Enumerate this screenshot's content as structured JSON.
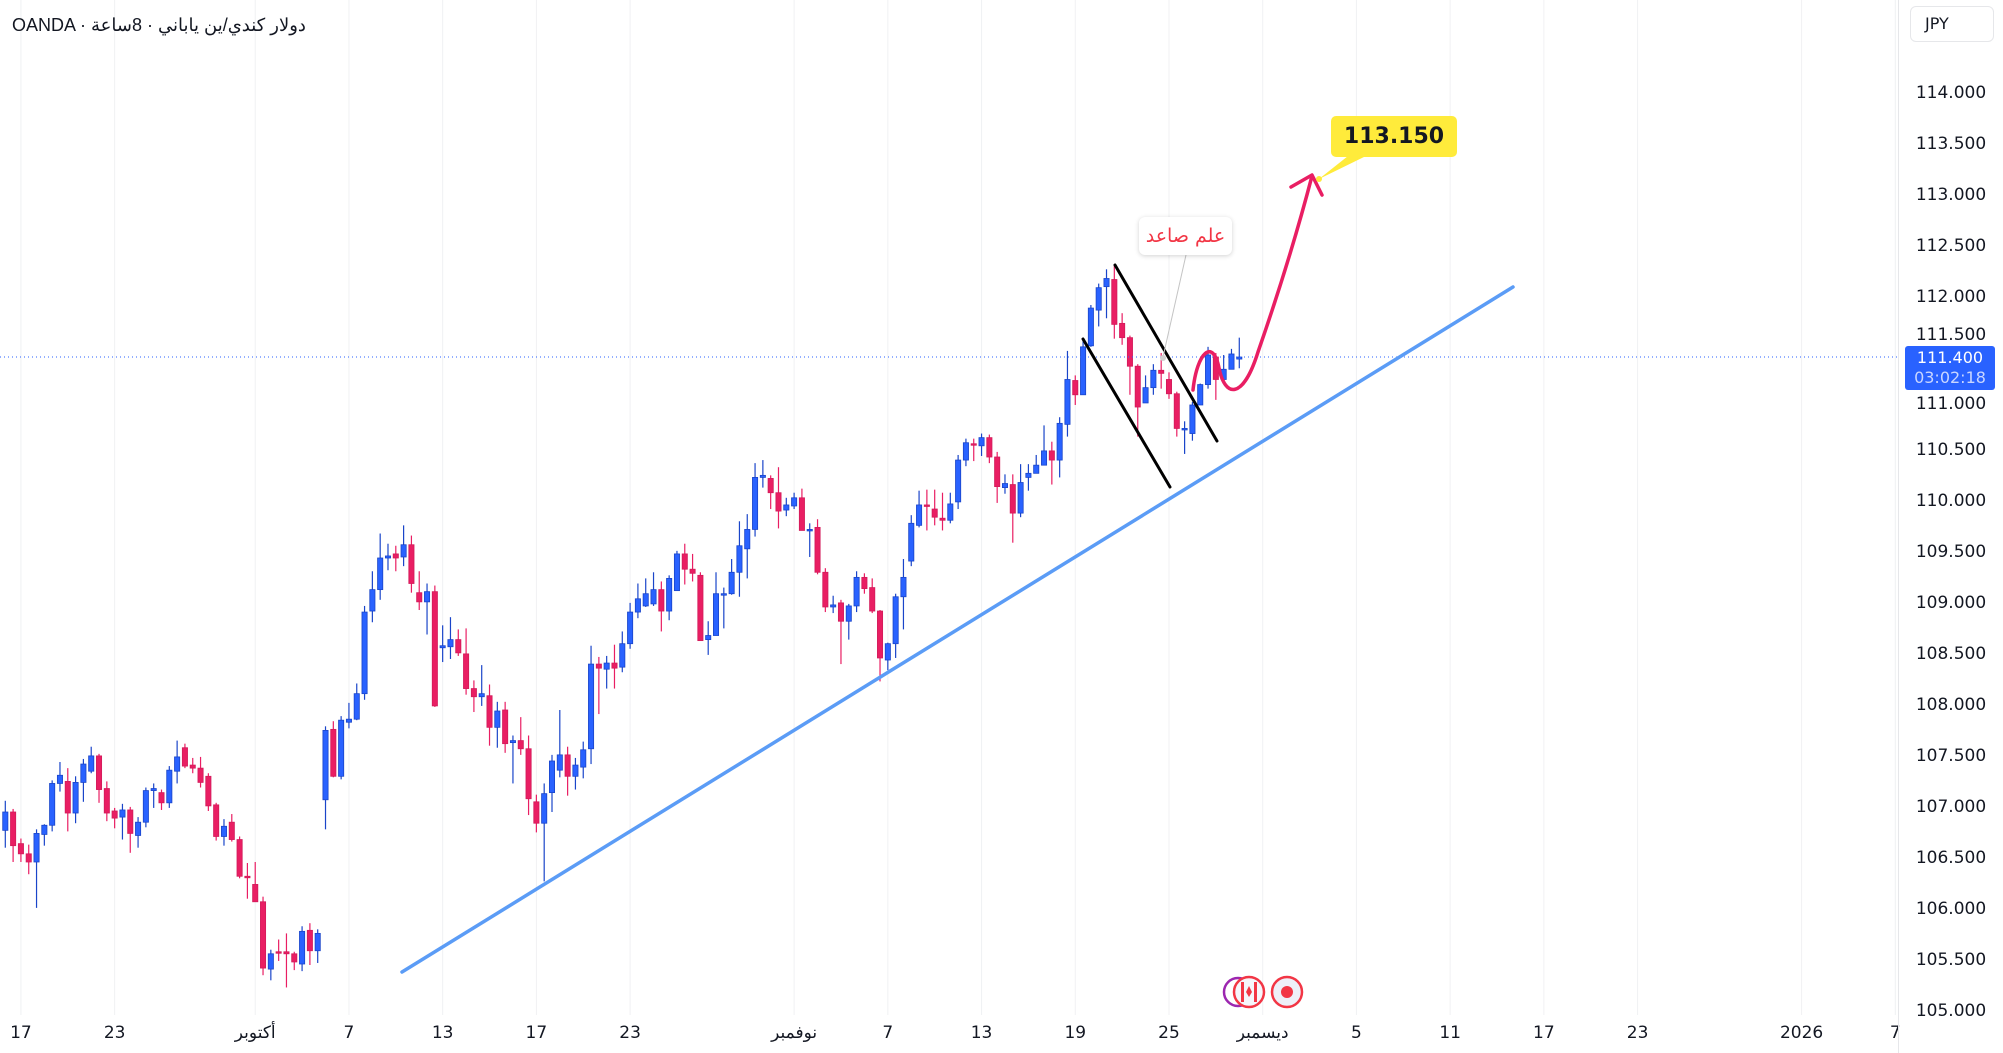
{
  "header": {
    "title": "OANDA · دولار كندي/ين ياباني · 8ساعة",
    "currency_button": "JPY"
  },
  "price_tag": {
    "price": "111.400",
    "countdown": "03:02:18"
  },
  "annotations": {
    "flag_label": "علم صاعد",
    "target_label": "113.150"
  },
  "colors": {
    "up": "#2962ff",
    "up_border": "#1a45c9",
    "down": "#e91e63",
    "down_border": "#d21b5a",
    "trendline": "#5b9cf6",
    "arrow": "#e91e63",
    "target_bg": "#ffeb3b",
    "grid": "#f0f1f3"
  },
  "events": [
    {
      "icon": "canada-flag-icon"
    },
    {
      "icon": "japan-flag-icon"
    }
  ],
  "chart_data": {
    "type": "candlestick",
    "title": "OANDA · دولار كندي/ين ياباني · 8ساعة",
    "ylabel": "JPY",
    "ylim": [
      104.95,
      114.9
    ],
    "last_price": 111.4,
    "y_ticks": [
      "114.000",
      "113.500",
      "113.000",
      "112.500",
      "112.000",
      "111.500",
      "111.000",
      "110.500",
      "110.000",
      "109.500",
      "109.000",
      "108.500",
      "108.000",
      "107.500",
      "107.000",
      "106.500",
      "106.000",
      "105.500",
      "105.000"
    ],
    "x_ticks": [
      {
        "label": "17",
        "candle": 2
      },
      {
        "label": "23",
        "candle": 14
      },
      {
        "label": "أكتوبر",
        "candle": 32
      },
      {
        "label": "7",
        "candle": 44
      },
      {
        "label": "13",
        "candle": 56
      },
      {
        "label": "17",
        "candle": 68
      },
      {
        "label": "23",
        "candle": 80
      },
      {
        "label": "نوفمبر",
        "candle": 101
      },
      {
        "label": "7",
        "candle": 113
      },
      {
        "label": "13",
        "candle": 125
      },
      {
        "label": "19",
        "candle": 137
      },
      {
        "label": "25",
        "candle": 149
      },
      {
        "label": "ديسمبر",
        "candle": 161
      },
      {
        "label": "5",
        "candle": 173
      },
      {
        "label": "11",
        "candle": 185
      },
      {
        "label": "17",
        "candle": 197
      },
      {
        "label": "23",
        "candle": 209
      },
      {
        "label": "2026",
        "candle": 230
      },
      {
        "label": "7",
        "candle": 242
      }
    ],
    "ohlc_fields": [
      "open",
      "high",
      "low",
      "close"
    ],
    "candles": [
      [
        106.76,
        107.05,
        106.59,
        106.94
      ],
      [
        106.94,
        106.97,
        106.45,
        106.61
      ],
      [
        106.63,
        106.68,
        106.45,
        106.53
      ],
      [
        106.53,
        106.62,
        106.33,
        106.45
      ],
      [
        106.45,
        106.77,
        106.0,
        106.73
      ],
      [
        106.72,
        106.82,
        106.61,
        106.81
      ],
      [
        106.81,
        107.25,
        106.75,
        107.22
      ],
      [
        107.22,
        107.43,
        107.14,
        107.3
      ],
      [
        107.24,
        107.37,
        106.75,
        106.93
      ],
      [
        106.93,
        107.29,
        106.83,
        107.23
      ],
      [
        107.23,
        107.46,
        107.04,
        107.41
      ],
      [
        107.34,
        107.58,
        107.32,
        107.49
      ],
      [
        107.49,
        107.51,
        107.03,
        107.16
      ],
      [
        107.17,
        107.24,
        106.85,
        106.93
      ],
      [
        106.95,
        106.98,
        106.78,
        106.88
      ],
      [
        106.89,
        107.02,
        106.67,
        106.96
      ],
      [
        106.96,
        106.99,
        106.54,
        106.73
      ],
      [
        106.71,
        106.89,
        106.59,
        106.84
      ],
      [
        106.84,
        107.18,
        106.79,
        107.15
      ],
      [
        107.15,
        107.22,
        106.98,
        107.17
      ],
      [
        107.13,
        107.16,
        106.96,
        107.03
      ],
      [
        107.03,
        107.39,
        106.98,
        107.35
      ],
      [
        107.34,
        107.64,
        107.22,
        107.48
      ],
      [
        107.57,
        107.61,
        107.37,
        107.39
      ],
      [
        107.4,
        107.47,
        107.32,
        107.37
      ],
      [
        107.37,
        107.48,
        107.18,
        107.23
      ],
      [
        107.29,
        107.32,
        106.95,
        107.0
      ],
      [
        107.01,
        107.03,
        106.66,
        106.7
      ],
      [
        106.7,
        106.87,
        106.61,
        106.8
      ],
      [
        106.84,
        106.92,
        106.65,
        106.67
      ],
      [
        106.67,
        106.7,
        106.29,
        106.31
      ],
      [
        106.31,
        106.44,
        106.09,
        106.3
      ],
      [
        106.23,
        106.45,
        106.06,
        106.06
      ],
      [
        106.06,
        106.11,
        105.34,
        105.41
      ],
      [
        105.4,
        105.59,
        105.29,
        105.55
      ],
      [
        105.57,
        105.69,
        105.48,
        105.56
      ],
      [
        105.57,
        105.75,
        105.22,
        105.55
      ],
      [
        105.55,
        105.57,
        105.39,
        105.47
      ],
      [
        105.45,
        105.82,
        105.38,
        105.77
      ],
      [
        105.78,
        105.85,
        105.44,
        105.58
      ],
      [
        105.58,
        105.79,
        105.46,
        105.75
      ],
      [
        107.06,
        107.78,
        106.77,
        107.74
      ],
      [
        107.75,
        107.83,
        107.28,
        107.29
      ],
      [
        107.29,
        107.88,
        107.26,
        107.84
      ],
      [
        107.82,
        108.01,
        107.76,
        107.85
      ],
      [
        107.85,
        108.2,
        107.84,
        108.1
      ],
      [
        108.1,
        108.96,
        108.04,
        108.9
      ],
      [
        108.91,
        109.3,
        108.8,
        109.12
      ],
      [
        109.12,
        109.67,
        109.02,
        109.43
      ],
      [
        109.43,
        109.57,
        109.31,
        109.45
      ],
      [
        109.47,
        109.55,
        109.3,
        109.43
      ],
      [
        109.44,
        109.75,
        109.35,
        109.56
      ],
      [
        109.56,
        109.65,
        109.09,
        109.18
      ],
      [
        109.09,
        109.3,
        108.92,
        109.0
      ],
      [
        109.0,
        109.18,
        108.68,
        109.1
      ],
      [
        109.1,
        109.16,
        107.97,
        107.98
      ],
      [
        108.55,
        108.77,
        108.41,
        108.57
      ],
      [
        108.56,
        108.85,
        108.44,
        108.63
      ],
      [
        108.63,
        108.73,
        108.47,
        108.5
      ],
      [
        108.49,
        108.74,
        108.09,
        108.15
      ],
      [
        108.15,
        108.23,
        107.92,
        108.07
      ],
      [
        108.07,
        108.38,
        107.98,
        108.1
      ],
      [
        108.08,
        108.19,
        107.59,
        107.77
      ],
      [
        107.77,
        108.02,
        107.57,
        107.93
      ],
      [
        107.94,
        108.02,
        107.52,
        107.61
      ],
      [
        107.62,
        107.69,
        107.22,
        107.64
      ],
      [
        107.64,
        107.87,
        107.5,
        107.56
      ],
      [
        107.56,
        107.69,
        106.91,
        107.07
      ],
      [
        107.04,
        107.11,
        106.74,
        106.83
      ],
      [
        106.83,
        107.22,
        106.26,
        107.12
      ],
      [
        107.13,
        107.5,
        106.94,
        107.44
      ],
      [
        107.35,
        107.94,
        107.28,
        107.5
      ],
      [
        107.5,
        107.58,
        107.1,
        107.29
      ],
      [
        107.29,
        107.47,
        107.16,
        107.4
      ],
      [
        107.38,
        107.63,
        107.27,
        107.55
      ],
      [
        107.56,
        108.57,
        107.41,
        108.39
      ],
      [
        108.39,
        108.46,
        107.9,
        108.35
      ],
      [
        108.34,
        108.47,
        108.15,
        108.4
      ],
      [
        108.4,
        108.58,
        108.15,
        108.35
      ],
      [
        108.36,
        108.71,
        108.31,
        108.59
      ],
      [
        108.59,
        108.99,
        108.54,
        108.9
      ],
      [
        108.9,
        109.18,
        108.84,
        109.03
      ],
      [
        108.96,
        109.23,
        108.95,
        109.08
      ],
      [
        108.98,
        109.29,
        108.96,
        109.12
      ],
      [
        109.12,
        109.2,
        108.71,
        108.91
      ],
      [
        108.91,
        109.26,
        108.82,
        109.23
      ],
      [
        109.11,
        109.5,
        109.11,
        109.47
      ],
      [
        109.47,
        109.57,
        109.17,
        109.32
      ],
      [
        109.32,
        109.47,
        109.2,
        109.28
      ],
      [
        109.26,
        109.29,
        108.62,
        108.62
      ],
      [
        108.63,
        108.81,
        108.48,
        108.67
      ],
      [
        108.67,
        109.29,
        108.67,
        109.08
      ],
      [
        109.07,
        109.14,
        108.74,
        109.08
      ],
      [
        109.08,
        109.42,
        109.07,
        109.29
      ],
      [
        109.29,
        109.79,
        109.05,
        109.55
      ],
      [
        109.52,
        109.86,
        109.23,
        109.71
      ],
      [
        109.71,
        110.36,
        109.64,
        110.22
      ],
      [
        110.22,
        110.39,
        110.12,
        110.24
      ],
      [
        110.21,
        110.24,
        109.91,
        110.07
      ],
      [
        110.07,
        110.32,
        109.72,
        109.89
      ],
      [
        109.9,
        110.02,
        109.84,
        109.95
      ],
      [
        109.94,
        110.07,
        109.91,
        110.02
      ],
      [
        110.02,
        110.11,
        109.7,
        109.7
      ],
      [
        109.7,
        109.77,
        109.44,
        109.71
      ],
      [
        109.73,
        109.81,
        109.27,
        109.29
      ],
      [
        109.29,
        109.33,
        108.9,
        108.95
      ],
      [
        108.95,
        109.06,
        108.89,
        108.97
      ],
      [
        108.99,
        109.02,
        108.39,
        108.81
      ],
      [
        108.81,
        108.98,
        108.63,
        108.96
      ],
      [
        108.96,
        109.3,
        108.9,
        109.24
      ],
      [
        109.24,
        109.28,
        109.08,
        109.13
      ],
      [
        109.14,
        109.23,
        108.89,
        108.91
      ],
      [
        108.91,
        108.92,
        108.22,
        108.45
      ],
      [
        108.43,
        108.6,
        108.33,
        108.59
      ],
      [
        108.59,
        109.08,
        108.45,
        109.05
      ],
      [
        109.05,
        109.42,
        108.73,
        109.24
      ],
      [
        109.4,
        109.85,
        109.35,
        109.77
      ],
      [
        109.75,
        110.09,
        109.73,
        109.95
      ],
      [
        109.95,
        110.1,
        109.7,
        109.94
      ],
      [
        109.91,
        110.1,
        109.75,
        109.83
      ],
      [
        109.82,
        110.07,
        109.7,
        109.8
      ],
      [
        109.8,
        110.07,
        109.77,
        109.96
      ],
      [
        109.98,
        110.44,
        109.91,
        110.39
      ],
      [
        110.39,
        110.6,
        110.33,
        110.56
      ],
      [
        110.55,
        110.6,
        110.38,
        110.54
      ],
      [
        110.53,
        110.65,
        110.43,
        110.61
      ],
      [
        110.61,
        110.64,
        110.36,
        110.42
      ],
      [
        110.42,
        110.47,
        109.97,
        110.13
      ],
      [
        110.12,
        110.25,
        110.06,
        110.16
      ],
      [
        110.15,
        110.25,
        109.58,
        109.87
      ],
      [
        109.87,
        110.35,
        109.83,
        110.17
      ],
      [
        110.22,
        110.35,
        110.09,
        110.26
      ],
      [
        110.26,
        110.44,
        110.26,
        110.34
      ],
      [
        110.34,
        110.73,
        110.34,
        110.48
      ],
      [
        110.48,
        110.57,
        110.15,
        110.39
      ],
      [
        110.39,
        110.81,
        110.22,
        110.75
      ],
      [
        110.74,
        111.46,
        110.62,
        111.18
      ],
      [
        111.17,
        111.22,
        110.93,
        111.03
      ],
      [
        111.03,
        111.59,
        111.03,
        111.5
      ],
      [
        111.51,
        111.91,
        111.5,
        111.88
      ],
      [
        111.86,
        112.12,
        111.7,
        112.08
      ],
      [
        112.09,
        112.26,
        111.78,
        112.17
      ],
      [
        112.16,
        112.3,
        111.58,
        111.72
      ],
      [
        111.73,
        111.83,
        111.52,
        111.59
      ],
      [
        111.59,
        111.61,
        111.03,
        111.31
      ],
      [
        111.31,
        111.33,
        110.62,
        110.91
      ],
      [
        110.95,
        111.22,
        110.95,
        111.1
      ],
      [
        111.1,
        111.33,
        111.03,
        111.27
      ],
      [
        111.27,
        111.44,
        111.09,
        111.24
      ],
      [
        111.18,
        111.25,
        110.99,
        111.04
      ],
      [
        111.04,
        111.06,
        110.62,
        110.7
      ],
      [
        110.7,
        110.77,
        110.45,
        110.7
      ],
      [
        110.65,
        110.96,
        110.58,
        110.93
      ],
      [
        110.93,
        111.14,
        110.93,
        111.13
      ],
      [
        111.13,
        111.5,
        111.09,
        111.42
      ],
      [
        111.4,
        111.44,
        110.98,
        111.18
      ],
      [
        111.18,
        111.42,
        111.14,
        111.28
      ],
      [
        111.28,
        111.48,
        111.28,
        111.43
      ],
      [
        111.38,
        111.59,
        111.29,
        111.4
      ]
    ]
  }
}
